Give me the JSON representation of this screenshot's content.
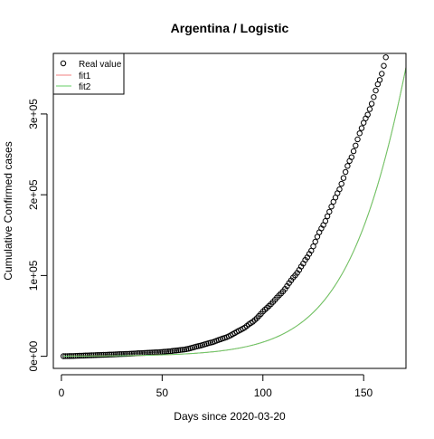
{
  "chart_data": {
    "type": "scatter",
    "title": "Argentina / Logistic",
    "xlabel": "Days since 2020-03-20",
    "ylabel": "Cumulative Confirmed cases",
    "xlim": [
      -4,
      171
    ],
    "ylim": [
      -15000,
      375000
    ],
    "x_ticks": [
      0,
      50,
      100,
      150
    ],
    "x_tick_labels": [
      "0",
      "50",
      "100",
      "150"
    ],
    "y_ticks": [
      0,
      100000,
      200000,
      300000
    ],
    "y_tick_labels": [
      "0e+00",
      "1e+05",
      "2e+05",
      "3e+05"
    ],
    "grid": false,
    "legend": {
      "position": "top-left",
      "entries": [
        {
          "label": "Real value",
          "marker": "circle"
        },
        {
          "label": "fit1",
          "line_color": "#f08080"
        },
        {
          "label": "fit2",
          "line_color": "#66cc66"
        }
      ]
    },
    "series": [
      {
        "name": "Real value",
        "marker_color": "#000000",
        "x_start": 1,
        "x_step": 1,
        "values": [
          128,
          158,
          225,
          266,
          301,
          387,
          502,
          589,
          690,
          745,
          820,
          966,
          1054,
          1133,
          1265,
          1353,
          1451,
          1554,
          1628,
          1715,
          1795,
          1894,
          1975,
          2142,
          2208,
          2277,
          2443,
          2571,
          2669,
          2758,
          2839,
          2941,
          3031,
          3144,
          3288,
          3435,
          3607,
          3780,
          3892,
          4003,
          4127,
          4285,
          4428,
          4532,
          4681,
          4783,
          4887,
          5020,
          5208,
          5371,
          5611,
          5776,
          6034,
          6265,
          6563,
          6879,
          7134,
          7479,
          7805,
          8068,
          8371,
          8809,
          9283,
          9931,
          10649,
          11353,
          12076,
          12628,
          13228,
          13933,
          14702,
          15419,
          16214,
          16851,
          17415,
          18319,
          19268,
          20197,
          21037,
          22020,
          22794,
          23620,
          24761,
          25987,
          27373,
          28764,
          30295,
          31577,
          32785,
          34159,
          35552,
          37510,
          39570,
          41204,
          42785,
          44931,
          47216,
          49851,
          52457,
          55343,
          57744,
          59933,
          62268,
          64530,
          67197,
          69941,
          72786,
          75376,
          77815,
          80447,
          83426,
          87030,
          90693,
          94060,
          97509,
          100166,
          103265,
          106910,
          111160,
          114783,
          119301,
          122524,
          126755,
          130774,
          136118,
          141900,
          148027,
          153520,
          158334,
          162526,
          167416,
          173355,
          178996,
          185373,
          191302,
          196543,
          201919,
          206743,
          213535,
          220682,
          228195,
          235677,
          241811,
          246499,
          253868,
          260911,
          268574,
          276072,
          282437,
          289100,
          294569,
          299126,
          305966,
          312659,
          320884,
          329043,
          336802,
          342154,
          349800,
          359638,
          370188
        ]
      },
      {
        "name": "fit1",
        "line_color": "#f08080",
        "model": "logistic",
        "parameters": {
          "K": 1400000,
          "r": 0.0465,
          "x0": 194
        }
      },
      {
        "name": "fit2",
        "line_color": "#66cc66",
        "model": "logistic",
        "parameters": {
          "K": 1400000,
          "r": 0.0465,
          "x0": 194
        }
      }
    ]
  }
}
